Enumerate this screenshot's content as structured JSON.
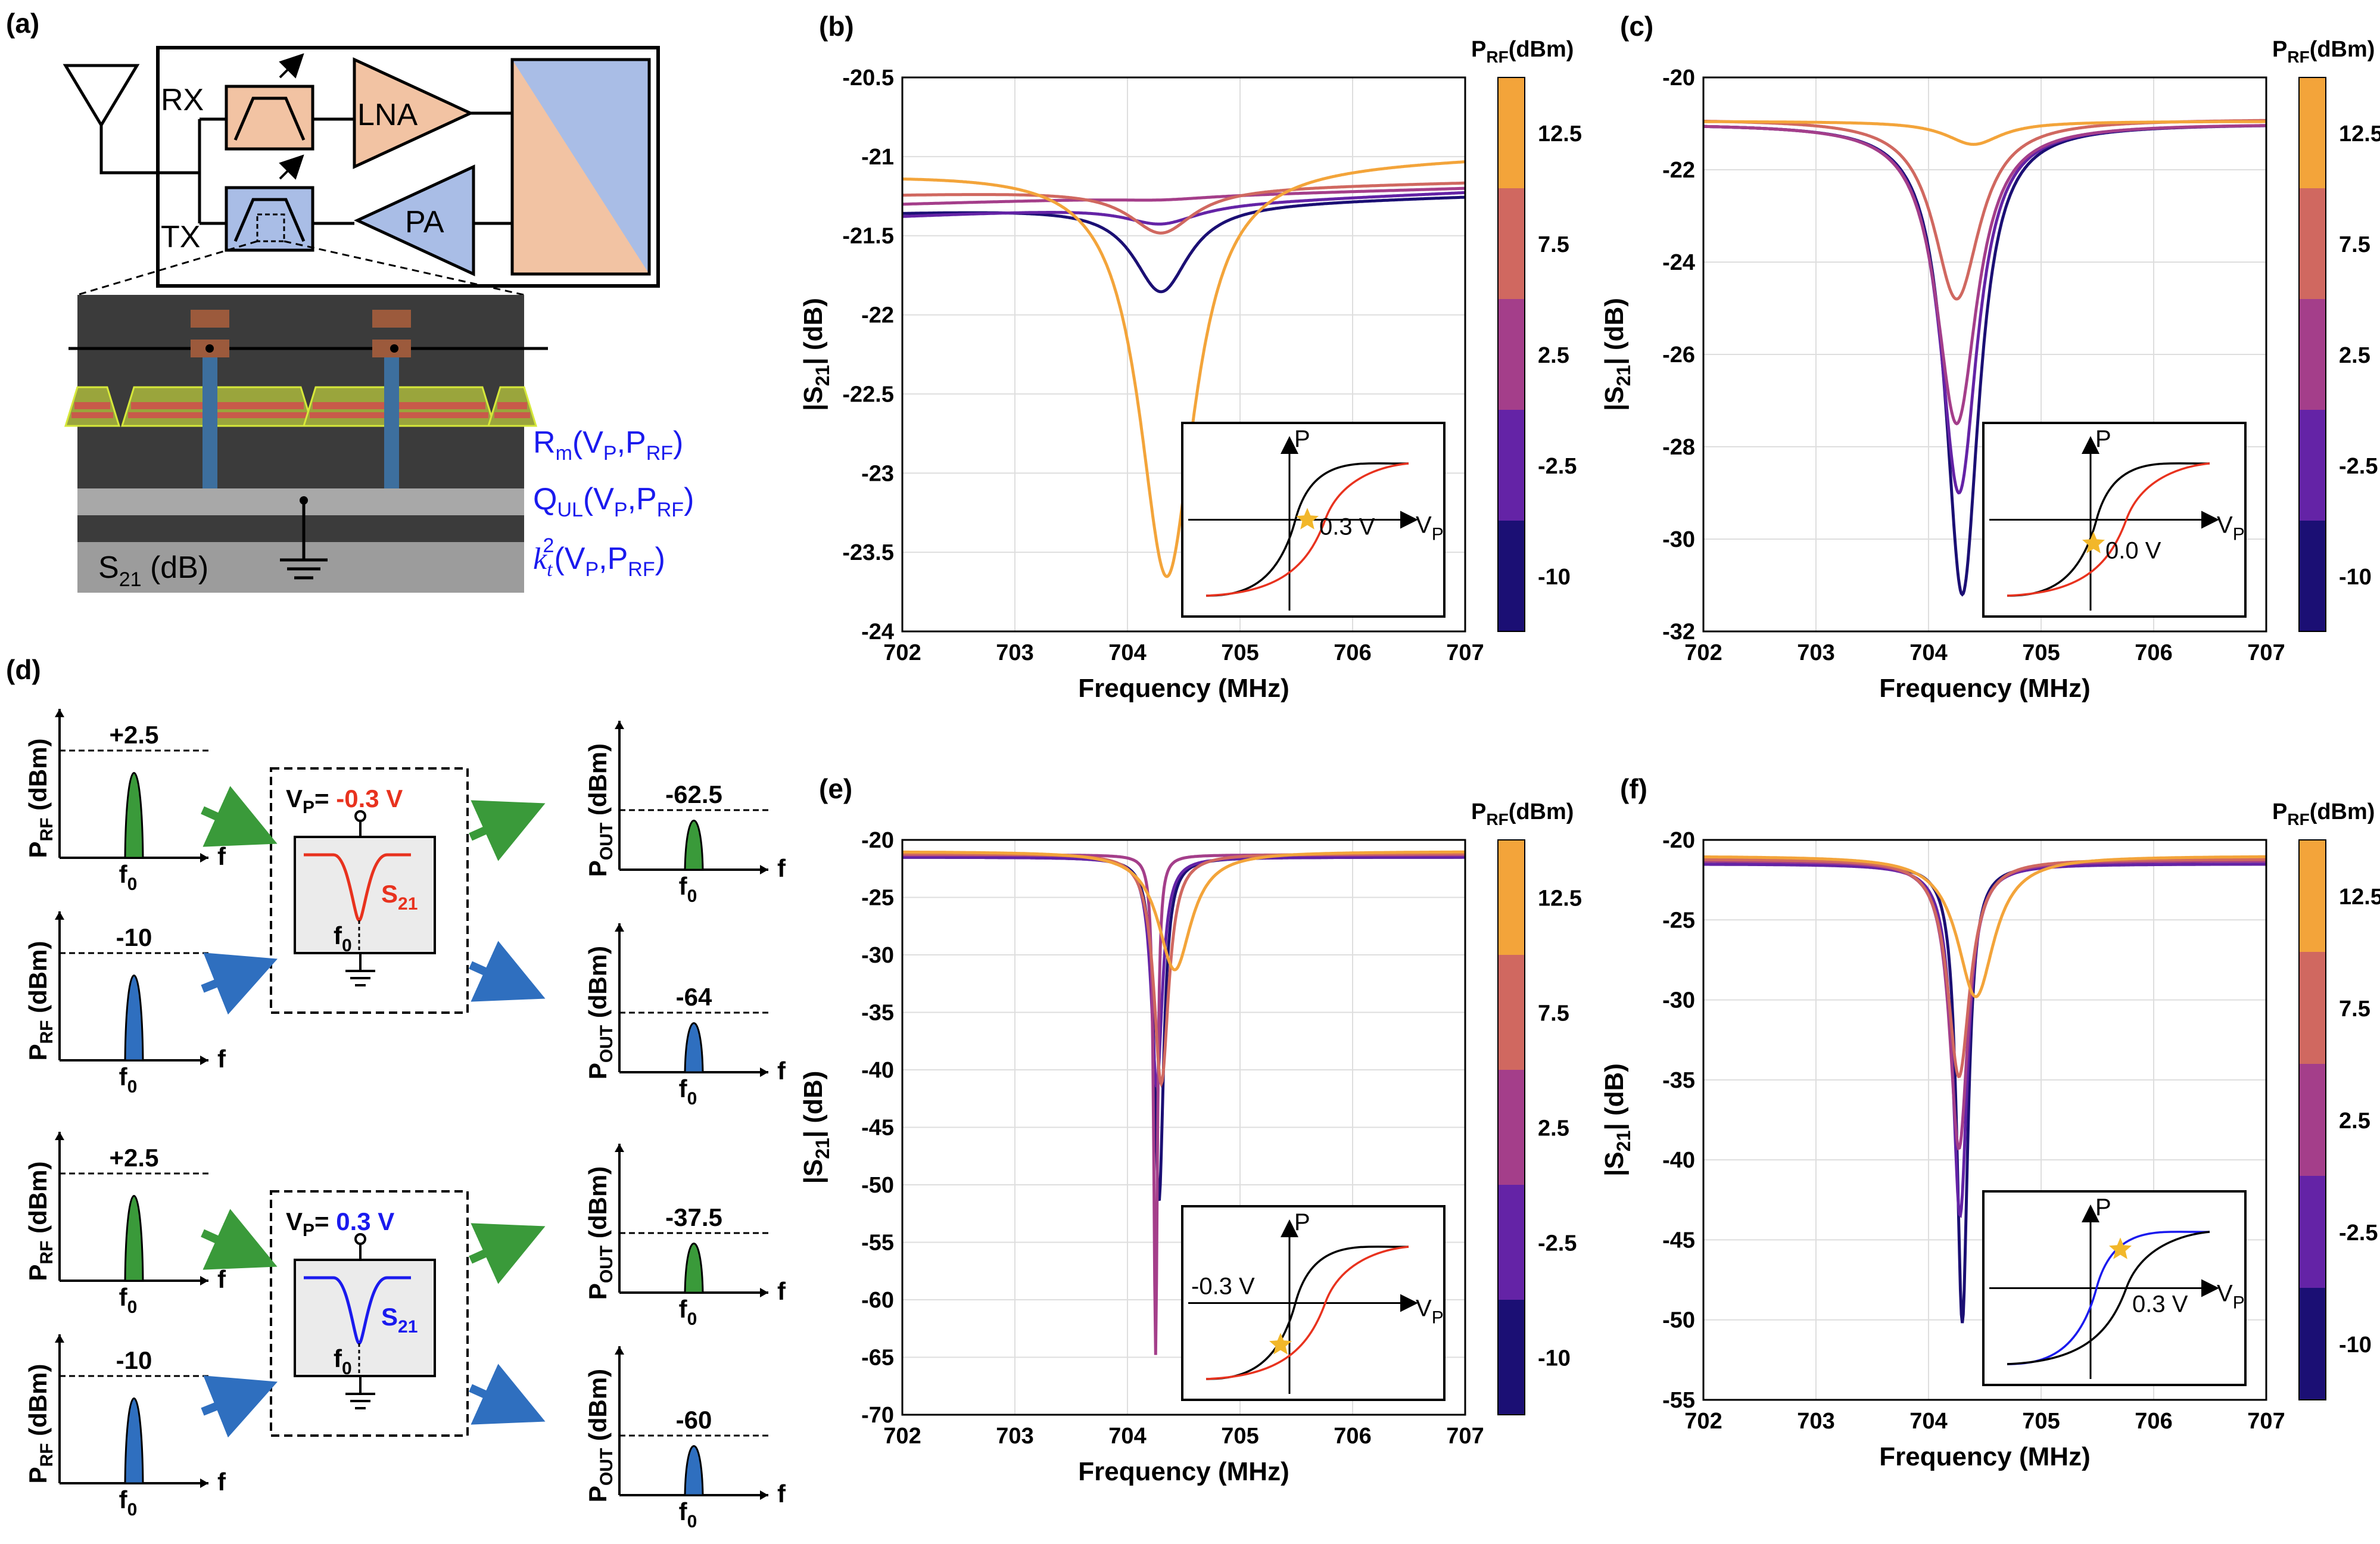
{
  "panel_a": {
    "label": "(a)",
    "rx": "RX",
    "tx": "TX",
    "lna": "LNA",
    "pa": "PA",
    "s21": "S",
    "s21_sub": "21",
    "s21_unit": " (dB)",
    "rm": "R",
    "rm_sub": "m",
    "rm_args": "(V",
    "rm_p": "P",
    "rm_a2": ",P",
    "rm_rf": "RF",
    "rm_close": ")",
    "qul": "Q",
    "qul_sub": "UL",
    "kt": "k",
    "kt_sub": "t",
    "kt_sup": "2",
    "arg_vp": "(V",
    "sub_p": "P",
    "arg_prf": ",P",
    "sub_rf": "RF",
    "close": ")",
    "colors": {
      "rx": "#f2c3a3",
      "tx": "#a9bde6",
      "device_bg": "#3b3b3b",
      "electrode": "#9aa53c",
      "electrode_edge": "#d6e83a",
      "piezo": "#c85a4a",
      "via": "#3d6f9e",
      "pad": "#9c5a3c",
      "substrate": "#9c9c9c"
    }
  },
  "panel_d": {
    "label": "(d)",
    "prf": "P",
    "prf_sub": "RF",
    "pout": "P",
    "pout_sub": "OUT",
    "dbm": "(dBm)",
    "f": "f",
    "f0": "f",
    "f0_sub": "0",
    "vp": "V",
    "vp_sub": "P",
    "eq": "= ",
    "s21": "S",
    "s21_sub": "21",
    "cases": [
      {
        "vp_value": "-0.3 V",
        "vp_color": "#e8321e",
        "in": [
          {
            "level": "+2.5",
            "color": "#3a9a3a",
            "out": "-62.5"
          },
          {
            "level": "-10",
            "color": "#2f6fbf",
            "out": "-64"
          }
        ]
      },
      {
        "vp_value": "0.3 V",
        "vp_color": "#1a1aee",
        "in": [
          {
            "level": "+2.5",
            "color": "#3a9a3a",
            "out": "-37.5"
          },
          {
            "level": "-10",
            "color": "#2f6fbf",
            "out": "-60"
          }
        ]
      }
    ]
  },
  "colorbar": {
    "title": "P",
    "title_sub": "RF",
    "title_unit": "(dBm)",
    "ticks": [
      "12.5",
      "7.5",
      "2.5",
      "-2.5",
      "-10"
    ],
    "colors": [
      "#f3a43a",
      "#d06860",
      "#a43e8a",
      "#6423a6",
      "#1b0f74"
    ]
  },
  "chart_data": [
    {
      "panel": "(b)",
      "type": "line",
      "xlabel": "Frequency (MHz)",
      "ylabel": "|S21| (dB)",
      "xlim": [
        702,
        707
      ],
      "ylim": [
        -24,
        -20.5
      ],
      "xticks": [
        "702",
        "703",
        "704",
        "705",
        "706",
        "707"
      ],
      "yticks": [
        "-24",
        "-23.5",
        "-23",
        "-22.5",
        "-22",
        "-21.5",
        "-21",
        "-20.5"
      ],
      "grid": true,
      "series": [
        {
          "color": "#1b0f74",
          "base": -21.3,
          "slope": 0.02,
          "f0": 704.3,
          "depth": 0.55,
          "w": 0.3
        },
        {
          "color": "#6423a6",
          "base": -21.3,
          "slope": 0.03,
          "f0": 704.3,
          "depth": 0.12,
          "w": 0.4
        },
        {
          "color": "#a43e8a",
          "base": -21.25,
          "slope": 0.02,
          "f0": 704.3,
          "depth": 0.02,
          "w": 0.5
        },
        {
          "color": "#d06860",
          "base": -21.2,
          "slope": 0.015,
          "f0": 704.3,
          "depth": 0.28,
          "w": 0.35
        },
        {
          "color": "#f3a43a",
          "base": -21.05,
          "slope": 0.02,
          "f0": 704.35,
          "depth": 2.6,
          "w": 0.3
        }
      ],
      "inset": {
        "label": "0.3 V",
        "p": "P",
        "vp": "V",
        "vp_sub": "P",
        "branch_color": "#e8321e",
        "star_side": "mid"
      }
    },
    {
      "panel": "(c)",
      "type": "line",
      "xlabel": "Frequency (MHz)",
      "ylabel": "|S21| (dB)",
      "xlim": [
        702,
        707
      ],
      "ylim": [
        -32,
        -20
      ],
      "xticks": [
        "702",
        "703",
        "704",
        "705",
        "706",
        "707"
      ],
      "yticks": [
        "-32",
        "-30",
        "-28",
        "-26",
        "-24",
        "-22",
        "-20"
      ],
      "grid": true,
      "series": [
        {
          "color": "#1b0f74",
          "base": -21.0,
          "slope": 0.0,
          "f0": 704.3,
          "depth": 10.2,
          "w": 0.18
        },
        {
          "color": "#6423a6",
          "base": -21.0,
          "slope": 0.0,
          "f0": 704.27,
          "depth": 8.0,
          "w": 0.2
        },
        {
          "color": "#a43e8a",
          "base": -21.0,
          "slope": 0.0,
          "f0": 704.25,
          "depth": 6.5,
          "w": 0.22
        },
        {
          "color": "#d06860",
          "base": -20.9,
          "slope": 0.0,
          "f0": 704.25,
          "depth": 3.9,
          "w": 0.25
        },
        {
          "color": "#f3a43a",
          "base": -20.95,
          "slope": 0.0,
          "f0": 704.4,
          "depth": 0.5,
          "w": 0.3
        }
      ],
      "inset": {
        "label": "0.0 V",
        "p": "P",
        "vp": "V",
        "vp_sub": "P",
        "branch_color": "#e8321e",
        "star_side": "low"
      }
    },
    {
      "panel": "(e)",
      "type": "line",
      "xlabel": "Frequency (MHz)",
      "ylabel": "|S21| (dB)",
      "xlim": [
        702,
        707
      ],
      "ylim": [
        -70,
        -20
      ],
      "xticks": [
        "702",
        "703",
        "704",
        "705",
        "706",
        "707"
      ],
      "yticks": [
        "-70",
        "-65",
        "-60",
        "-55",
        "-50",
        "-45",
        "-40",
        "-35",
        "-30",
        "-25",
        "-20"
      ],
      "grid": true,
      "series": [
        {
          "color": "#1b0f74",
          "base": -21.5,
          "slope": 0.0,
          "f0": 704.28,
          "depth": 30.0,
          "w": 0.05
        },
        {
          "color": "#6423a6",
          "base": -21.5,
          "slope": 0.0,
          "f0": 704.26,
          "depth": 20.0,
          "w": 0.06
        },
        {
          "color": "#a43e8a",
          "base": -21.3,
          "slope": 0.0,
          "f0": 704.25,
          "depth": 43.5,
          "w": 0.02
        },
        {
          "color": "#d06860",
          "base": -21.2,
          "slope": 0.0,
          "f0": 704.3,
          "depth": 20.0,
          "w": 0.08
        },
        {
          "color": "#f3a43a",
          "base": -21.0,
          "slope": 0.0,
          "f0": 704.42,
          "depth": 10.3,
          "w": 0.18
        }
      ],
      "inset": {
        "label": "-0.3 V",
        "p": "P",
        "vp": "V",
        "vp_sub": "P",
        "branch_color": "#e8321e",
        "star_side": "left"
      }
    },
    {
      "panel": "(f)",
      "type": "line",
      "xlabel": "Frequency (MHz)",
      "ylabel": "|S21| (dB)",
      "xlim": [
        702,
        707
      ],
      "ylim": [
        -55,
        -20
      ],
      "xticks": [
        "702",
        "703",
        "704",
        "705",
        "706",
        "707"
      ],
      "yticks": [
        "-55",
        "-50",
        "-45",
        "-40",
        "-35",
        "-30",
        "-25",
        "-20"
      ],
      "grid": true,
      "series": [
        {
          "color": "#1b0f74",
          "base": -21.5,
          "slope": 0.0,
          "f0": 704.3,
          "depth": 28.7,
          "w": 0.06
        },
        {
          "color": "#6423a6",
          "base": -21.5,
          "slope": 0.0,
          "f0": 704.28,
          "depth": 22.0,
          "w": 0.08
        },
        {
          "color": "#a43e8a",
          "base": -21.3,
          "slope": 0.0,
          "f0": 704.27,
          "depth": 18.0,
          "w": 0.1
        },
        {
          "color": "#d06860",
          "base": -21.2,
          "slope": 0.0,
          "f0": 704.27,
          "depth": 13.6,
          "w": 0.12
        },
        {
          "color": "#f3a43a",
          "base": -21.0,
          "slope": 0.0,
          "f0": 704.42,
          "depth": 8.8,
          "w": 0.2
        }
      ],
      "inset": {
        "label": "0.3 V",
        "p": "P",
        "vp": "V",
        "vp_sub": "P",
        "branch_color": "#1a1aee",
        "star_side": "high"
      }
    }
  ]
}
